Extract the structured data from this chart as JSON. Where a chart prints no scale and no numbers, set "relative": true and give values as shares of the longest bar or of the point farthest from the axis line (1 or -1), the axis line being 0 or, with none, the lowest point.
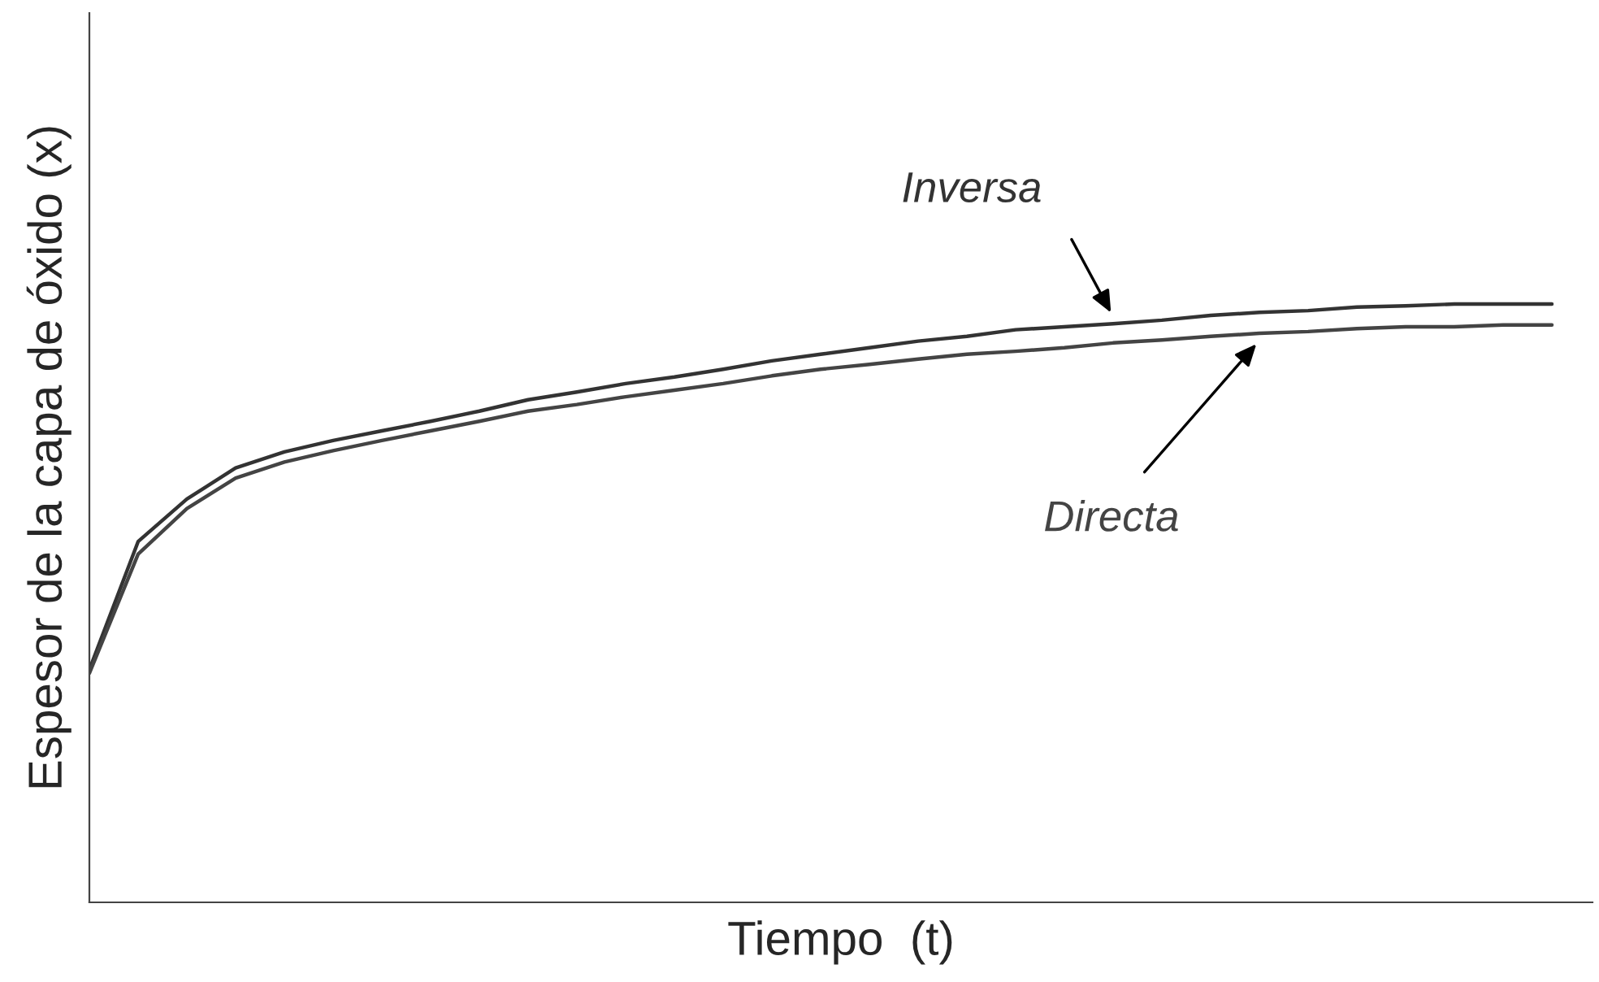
{
  "chart_data": {
    "type": "line",
    "relative": true,
    "xlabel": "Tiempo  (t)",
    "ylabel": "Espesor de la capa de óxido (x)",
    "legend": false,
    "categories": [
      null,
      null,
      null,
      null,
      null,
      null,
      null,
      null,
      null,
      null,
      null,
      null,
      null,
      null,
      null,
      null,
      null,
      null,
      null,
      null,
      null,
      null,
      null,
      null,
      null,
      null,
      null,
      null,
      null,
      null,
      null
    ],
    "series": [
      {
        "name": "Inversa",
        "color": "#333333",
        "values": [
          0.389,
          0.603,
          0.674,
          0.726,
          0.753,
          0.772,
          0.788,
          0.804,
          0.821,
          0.84,
          0.853,
          0.867,
          0.878,
          0.891,
          0.905,
          0.916,
          0.927,
          0.938,
          0.946,
          0.957,
          0.962,
          0.967,
          0.973,
          0.981,
          0.986,
          0.989,
          0.995,
          0.997,
          1,
          1,
          1
        ]
      },
      {
        "name": "Directa",
        "color": "#444444",
        "values": [
          0.383,
          0.582,
          0.658,
          0.709,
          0.736,
          0.755,
          0.772,
          0.788,
          0.804,
          0.821,
          0.832,
          0.845,
          0.856,
          0.867,
          0.88,
          0.891,
          0.899,
          0.908,
          0.916,
          0.921,
          0.927,
          0.935,
          0.94,
          0.946,
          0.951,
          0.954,
          0.959,
          0.962,
          0.962,
          0.965,
          0.965
        ]
      }
    ]
  }
}
